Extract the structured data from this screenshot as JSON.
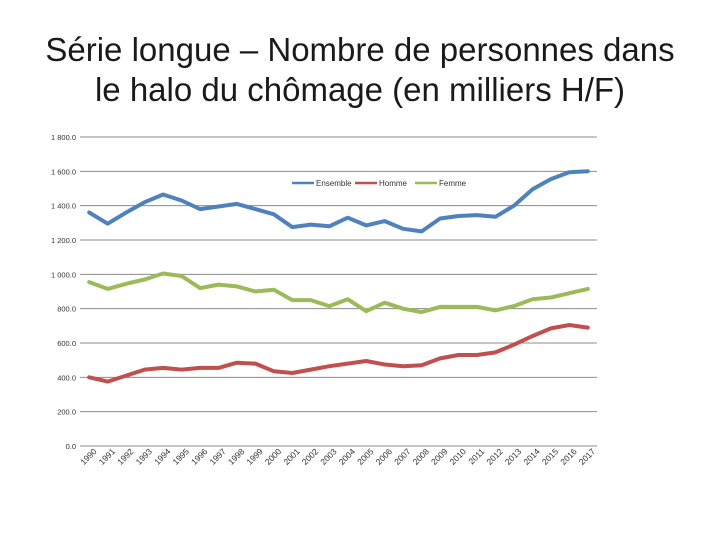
{
  "title_lines": [
    "Série longue – Nombre de personnes dans",
    "le halo du chômage (en milliers H/F)"
  ],
  "chart_data": {
    "type": "line",
    "title": "Série longue – Nombre de personnes dans le halo du chômage (en milliers H/F)",
    "xlabel": "",
    "ylabel": "",
    "ylim": [
      0,
      1800
    ],
    "yticks": [
      0,
      200,
      400,
      600,
      800,
      1000,
      1200,
      1400,
      1600,
      1800
    ],
    "ytick_labels": [
      "0.0",
      "200.0",
      "400.0",
      "600.0",
      "800.0",
      "1 000.0",
      "1 200.0",
      "1 400.0",
      "1 600.0",
      "1 800.0"
    ],
    "grid": "horizontal",
    "legend_position": "top-center",
    "categories": [
      "1990",
      "1991",
      "1992",
      "1993",
      "1994",
      "1995",
      "1996",
      "1997",
      "1998",
      "1999",
      "2000",
      "2001",
      "2002",
      "2003",
      "2004",
      "2005",
      "2006",
      "2007",
      "2008",
      "2009",
      "2010",
      "2011",
      "2012",
      "2013",
      "2014",
      "2015",
      "2016",
      "2017"
    ],
    "series": [
      {
        "name": "Ensemble",
        "color": "#4f81bd",
        "values": [
          1360,
          1295,
          1360,
          1420,
          1465,
          1430,
          1380,
          1395,
          1410,
          1380,
          1350,
          1275,
          1290,
          1280,
          1330,
          1285,
          1310,
          1265,
          1250,
          1325,
          1340,
          1345,
          1335,
          1400,
          1495,
          1555,
          1595,
          1600
        ]
      },
      {
        "name": "Homme",
        "color": "#c0504d",
        "values": [
          400,
          375,
          410,
          445,
          455,
          445,
          455,
          455,
          485,
          480,
          435,
          425,
          445,
          465,
          480,
          495,
          475,
          465,
          470,
          510,
          530,
          530,
          545,
          590,
          640,
          685,
          705,
          690
        ]
      },
      {
        "name": "Femme",
        "color": "#9bbb59",
        "values": [
          955,
          915,
          945,
          970,
          1005,
          990,
          920,
          940,
          930,
          900,
          910,
          850,
          850,
          815,
          855,
          785,
          835,
          800,
          780,
          810,
          810,
          810,
          790,
          815,
          855,
          865,
          890,
          915
        ]
      }
    ]
  }
}
